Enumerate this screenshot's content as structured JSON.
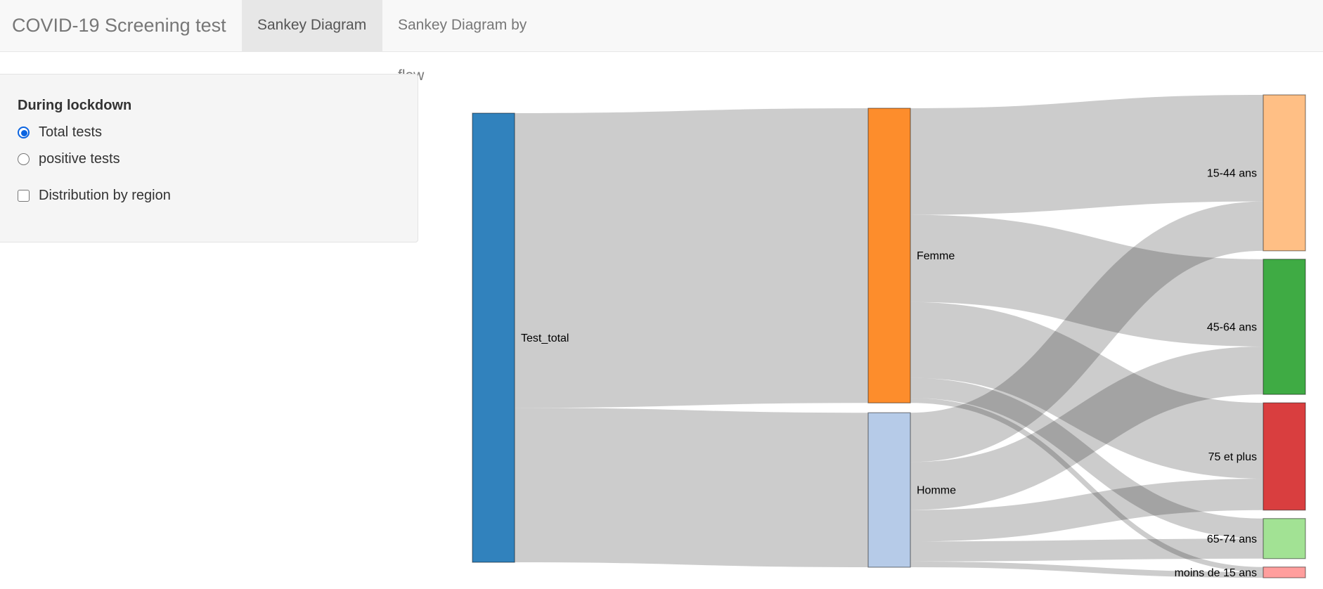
{
  "navbar": {
    "brand": "COVID-19 Screening test",
    "tabs": [
      {
        "label": "Sankey Diagram",
        "active": true
      },
      {
        "label": "Sankey Diagram by flow",
        "active": false
      }
    ]
  },
  "sidebar": {
    "group_label": "During lockdown",
    "radio_options": [
      {
        "label": "Total tests",
        "checked": true
      },
      {
        "label": "positive tests",
        "checked": false
      }
    ],
    "checkbox": {
      "label": "Distribution by region",
      "checked": false
    }
  },
  "chart_data": {
    "type": "sankey",
    "nodes": [
      {
        "name": "Test_total",
        "color": "#3182bd"
      },
      {
        "name": "Femme",
        "color": "#fd8d2c"
      },
      {
        "name": "Homme",
        "color": "#b6cbe8"
      },
      {
        "name": "15-44 ans",
        "color": "#ffbf85"
      },
      {
        "name": "45-64 ans",
        "color": "#3fab44"
      },
      {
        "name": "75 et plus",
        "color": "#d93e3f"
      },
      {
        "name": "65-74 ans",
        "color": "#a2e294"
      },
      {
        "name": "moins de 15 ans",
        "color": "#ff9e9d"
      }
    ],
    "links": [
      {
        "source": "Test_total",
        "target": "Femme",
        "value": 412
      },
      {
        "source": "Test_total",
        "target": "Homme",
        "value": 216
      },
      {
        "source": "Femme",
        "target": "15-44 ans",
        "value": 149
      },
      {
        "source": "Femme",
        "target": "45-64 ans",
        "value": 122
      },
      {
        "source": "Femme",
        "target": "75 et plus",
        "value": 106
      },
      {
        "source": "Femme",
        "target": "65-74 ans",
        "value": 28
      },
      {
        "source": "Femme",
        "target": "moins de 15 ans",
        "value": 7
      },
      {
        "source": "Homme",
        "target": "15-44 ans",
        "value": 69
      },
      {
        "source": "Homme",
        "target": "45-64 ans",
        "value": 67
      },
      {
        "source": "Homme",
        "target": "75 et plus",
        "value": 44
      },
      {
        "source": "Homme",
        "target": "65-74 ans",
        "value": 28
      },
      {
        "source": "Homme",
        "target": "moins de 15 ans",
        "value": 8
      }
    ],
    "link_color": "#000000",
    "link_opacity": 0.2
  }
}
